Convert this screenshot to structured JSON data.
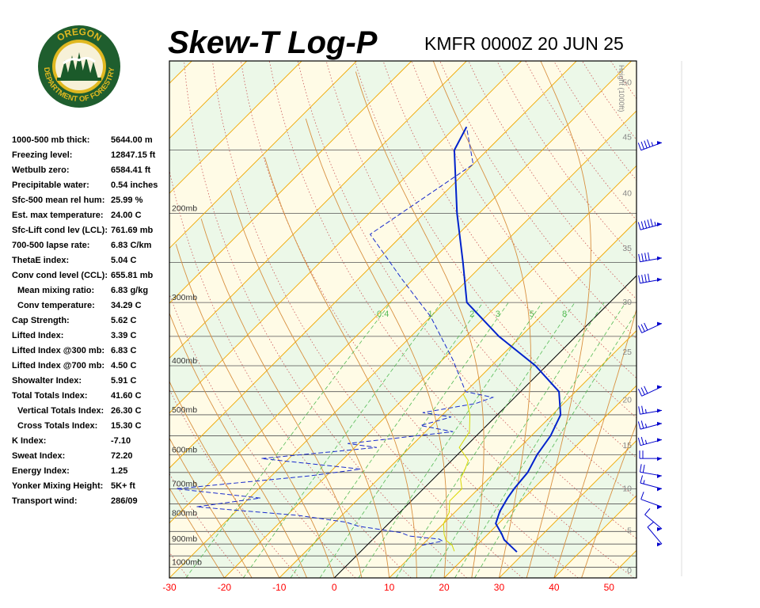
{
  "header": {
    "title": "Skew-T Log-P",
    "station": "KMFR 0000Z 20 JUN 25"
  },
  "logo": {
    "top_text": "OREGON",
    "bottom_text": "DEPARTMENT OF FORESTRY",
    "colors": {
      "ring": "#1f5e2e",
      "gold": "#e0b820",
      "tree": "#1b5a2a"
    }
  },
  "indices": [
    {
      "label": "1000-500 mb thick:",
      "value": "5644.00 m",
      "indent": false
    },
    {
      "label": "Freezing level:",
      "value": "12847.15 ft",
      "indent": false
    },
    {
      "label": "Wetbulb zero:",
      "value": "6584.41 ft",
      "indent": false
    },
    {
      "label": "Precipitable water:",
      "value": "0.54 inches",
      "indent": false
    },
    {
      "label": "Sfc-500 mean rel hum:",
      "value": "25.99 %",
      "indent": false
    },
    {
      "label": "Est. max temperature:",
      "value": "24.00 C",
      "indent": false
    },
    {
      "label": "Sfc-Lift cond lev (LCL):",
      "value": "761.69 mb",
      "indent": false
    },
    {
      "label": "700-500 lapse rate:",
      "value": "6.83 C/km",
      "indent": false
    },
    {
      "label": "ThetaE index:",
      "value": "5.04 C",
      "indent": false
    },
    {
      "label": "Conv cond level (CCL):",
      "value": "655.81 mb",
      "indent": false
    },
    {
      "label": "Mean mixing ratio:",
      "value": "6.83 g/kg",
      "indent": true
    },
    {
      "label": "Conv temperature:",
      "value": "34.29 C",
      "indent": true
    },
    {
      "label": "Cap Strength:",
      "value": "5.62 C",
      "indent": false
    },
    {
      "label": "Lifted Index:",
      "value": "3.39 C",
      "indent": false
    },
    {
      "label": "Lifted Index @300 mb:",
      "value": "6.83 C",
      "indent": false
    },
    {
      "label": "Lifted Index @700 mb:",
      "value": "4.50 C",
      "indent": false
    },
    {
      "label": "Showalter Index:",
      "value": "5.91 C",
      "indent": false
    },
    {
      "label": "Total Totals Index:",
      "value": "41.60 C",
      "indent": false
    },
    {
      "label": "Vertical Totals Index:",
      "value": "26.30 C",
      "indent": true
    },
    {
      "label": "Cross Totals Index:",
      "value": "15.30 C",
      "indent": true
    },
    {
      "label": "K Index:",
      "value": "-7.10",
      "indent": false
    },
    {
      "label": "Sweat Index:",
      "value": "72.20",
      "indent": false
    },
    {
      "label": "Energy Index:",
      "value": "1.25",
      "indent": false
    },
    {
      "label": "Yonker Mixing Height:",
      "value": "5K+ ft",
      "indent": false
    },
    {
      "label": "Transport wind:",
      "value": "286/09",
      "indent": false
    }
  ],
  "chart_data": {
    "type": "line",
    "xlabel": "",
    "ylabel": "",
    "xlim": [
      -30,
      55
    ],
    "x_ticks": [
      -30,
      -20,
      -10,
      0,
      10,
      20,
      30,
      40,
      50
    ],
    "pressure_ticks": [
      {
        "p": 200,
        "label": "200mb"
      },
      {
        "p": 300,
        "label": "300mb"
      },
      {
        "p": 400,
        "label": "400mb"
      },
      {
        "p": 500,
        "label": "500mb"
      },
      {
        "p": 600,
        "label": "600mb"
      },
      {
        "p": 700,
        "label": "700mb"
      },
      {
        "p": 800,
        "label": "800mb"
      },
      {
        "p": 900,
        "label": "900mb"
      },
      {
        "p": 1000,
        "label": "1000mb"
      }
    ],
    "height_axis_label": "Height (1000ft)",
    "height_ticks": [
      {
        "p": 1013,
        "label": "0"
      },
      {
        "p": 845,
        "label": "5"
      },
      {
        "p": 698,
        "label": "10"
      },
      {
        "p": 573,
        "label": "15"
      },
      {
        "p": 466,
        "label": "20"
      },
      {
        "p": 375,
        "label": "25"
      },
      {
        "p": 299,
        "label": "30"
      },
      {
        "p": 234,
        "label": "35"
      },
      {
        "p": 182,
        "label": "40"
      },
      {
        "p": 141,
        "label": "45"
      },
      {
        "p": 110,
        "label": "50"
      }
    ],
    "mixing_ratio_labels": [
      "0.4",
      "1",
      "2",
      "3",
      "5",
      "8"
    ],
    "series": [
      {
        "role": "temperature",
        "color": "#0022cc",
        "points": [
          [
            28.5,
            933
          ],
          [
            26,
            905
          ],
          [
            24,
            883
          ],
          [
            22.5,
            860
          ],
          [
            19.5,
            820
          ],
          [
            18,
            775
          ],
          [
            17,
            730
          ],
          [
            16.5,
            700
          ],
          [
            16,
            650
          ],
          [
            14.5,
            600
          ],
          [
            13.5,
            550
          ],
          [
            11.5,
            500
          ],
          [
            7,
            450
          ],
          [
            -2,
            400
          ],
          [
            -14,
            350
          ],
          [
            -26,
            300
          ],
          [
            -34,
            250
          ],
          [
            -44,
            200
          ],
          [
            -56,
            150
          ],
          [
            -58,
            135
          ]
        ]
      },
      {
        "role": "dewpoint",
        "color": "#1a2ccc",
        "points": [
          [
            10,
            905
          ],
          [
            13,
            888
          ],
          [
            12,
            880
          ],
          [
            6,
            868
          ],
          [
            4,
            855
          ],
          [
            -5,
            830
          ],
          [
            -8,
            815
          ],
          [
            -18,
            790
          ],
          [
            -38,
            760
          ],
          [
            -28,
            730
          ],
          [
            -45,
            700
          ],
          [
            -23,
            660
          ],
          [
            -15,
            640
          ],
          [
            -35,
            610
          ],
          [
            -16,
            580
          ],
          [
            -22,
            570
          ],
          [
            -5,
            540
          ],
          [
            -12,
            525
          ],
          [
            -8,
            505
          ],
          [
            -14,
            495
          ],
          [
            -10,
            485
          ],
          [
            -6,
            475
          ],
          [
            -4,
            462
          ],
          [
            -10,
            450
          ],
          [
            -18,
            390
          ],
          [
            -30,
            320
          ],
          [
            -42,
            270
          ],
          [
            -56,
            220
          ],
          [
            -50,
            160
          ],
          [
            -58,
            135
          ]
        ]
      },
      {
        "role": "wetbulb",
        "color": "#d8d800",
        "points": [
          [
            17,
            930
          ],
          [
            15.5,
            905
          ],
          [
            13.5,
            885
          ],
          [
            12,
            860
          ],
          [
            10,
            820
          ],
          [
            9,
            780
          ],
          [
            7,
            740
          ],
          [
            7,
            700
          ],
          [
            5,
            670
          ],
          [
            4,
            640
          ],
          [
            3,
            615
          ],
          [
            -1,
            580
          ],
          [
            -2,
            540
          ],
          [
            -5,
            500
          ],
          [
            -8,
            470
          ],
          [
            -10,
            455
          ]
        ]
      }
    ],
    "isobar_lines": [
      100,
      150,
      200,
      250,
      300,
      350,
      400,
      450,
      500,
      550,
      600,
      650,
      700,
      750,
      800,
      850,
      900,
      950,
      1000,
      1050
    ],
    "wind_profile": [
      {
        "p": 145,
        "dir": 250,
        "kt": 45
      },
      {
        "p": 210,
        "dir": 255,
        "kt": 55
      },
      {
        "p": 245,
        "dir": 260,
        "kt": 40
      },
      {
        "p": 270,
        "dir": 260,
        "kt": 40
      },
      {
        "p": 330,
        "dir": 245,
        "kt": 30
      },
      {
        "p": 440,
        "dir": 245,
        "kt": 30
      },
      {
        "p": 490,
        "dir": 260,
        "kt": 25
      },
      {
        "p": 520,
        "dir": 255,
        "kt": 25
      },
      {
        "p": 560,
        "dir": 255,
        "kt": 25
      },
      {
        "p": 610,
        "dir": 270,
        "kt": 20
      },
      {
        "p": 660,
        "dir": 280,
        "kt": 20
      },
      {
        "p": 700,
        "dir": 285,
        "kt": 15
      },
      {
        "p": 760,
        "dir": 290,
        "kt": 10
      },
      {
        "p": 840,
        "dir": 310,
        "kt": 10
      },
      {
        "p": 900,
        "dir": 320,
        "kt": 10
      }
    ],
    "colors": {
      "dry_adiabat": "#d89040",
      "moist_adiabat": "#cc5a5a",
      "mixing_ratio": "#55bb55",
      "isotherm": "#f0a800",
      "zero_isotherm": "#000000",
      "isobar": "#555555",
      "x_tick_text": "#ff0000",
      "band_green": "#ecf8e8",
      "band_yellow": "#fffbe6",
      "wind": "#0000cc"
    }
  }
}
